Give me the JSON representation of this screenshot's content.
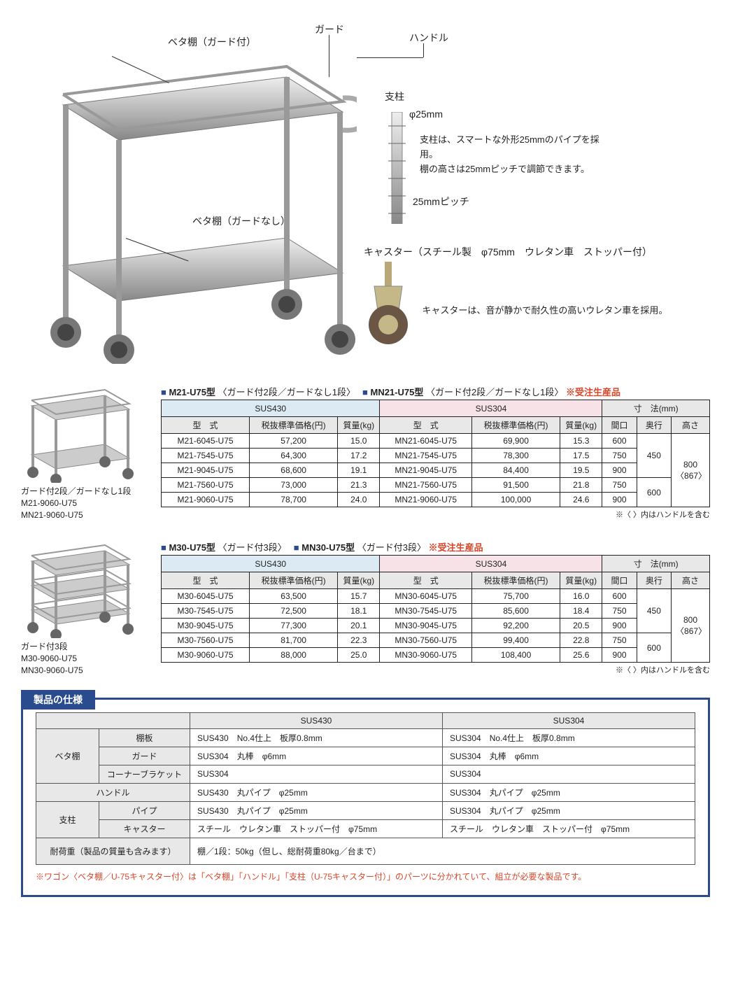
{
  "diagram": {
    "labels": {
      "guard": "ガード",
      "handle": "ハンドル",
      "shelf_guard": "ベタ棚（ガード付）",
      "post": "支柱",
      "shelf_noguard": "ベタ棚（ガードなし）",
      "diameter": "φ25mm",
      "pitch": "25mmピッチ",
      "post_text": "支柱は、スマートな外形25mmのパイプを採用。\n棚の高さは25mmピッチで調節できます。",
      "caster_title": "キャスター（スチール製　φ75mm　ウレタン車　ストッパー付）",
      "caster_text": "キャスターは、音が静かで耐久性の高いウレタン車を採用。"
    }
  },
  "colors": {
    "blue_bg": "#dbeaf3",
    "pink_bg": "#f6e2e7",
    "gray_bg": "#e8e8e8",
    "navy": "#2b4b8f",
    "red": "#d9462a"
  },
  "tables": [
    {
      "thumb_cap1": "ガード付2段／ガードなし1段",
      "thumb_cap2": "M21-9060-U75",
      "thumb_cap3": "MN21-9060-U75",
      "title_a": "M21-U75型",
      "title_a_sub": "〈ガード付2段／ガードなし1段〉",
      "title_b": "MN21-U75型",
      "title_b_sub": "〈ガード付2段／ガードなし1段〉",
      "made_to_order": "※受注生産品",
      "mat_a": "SUS430",
      "mat_b": "SUS304",
      "dim_header": "寸　法(mm)",
      "col_model": "型　式",
      "col_price": "税抜標準価格(円)",
      "col_weight": "質量(kg)",
      "col_w": "間口",
      "col_d": "奥行",
      "col_h": "高さ",
      "depth_group1": "450",
      "depth_group2": "600",
      "height": "800\n〈867〉",
      "rows": [
        {
          "ma": "M21-6045-U75",
          "pa": "57,200",
          "wa": "15.0",
          "mb": "MN21-6045-U75",
          "pb": "69,900",
          "wb": "15.3",
          "ww": "600"
        },
        {
          "ma": "M21-7545-U75",
          "pa": "64,300",
          "wa": "17.2",
          "mb": "MN21-7545-U75",
          "pb": "78,300",
          "wb": "17.5",
          "ww": "750"
        },
        {
          "ma": "M21-9045-U75",
          "pa": "68,600",
          "wa": "19.1",
          "mb": "MN21-9045-U75",
          "pb": "84,400",
          "wb": "19.5",
          "ww": "900"
        },
        {
          "ma": "M21-7560-U75",
          "pa": "73,000",
          "wa": "21.3",
          "mb": "MN21-7560-U75",
          "pb": "91,500",
          "wb": "21.8",
          "ww": "750"
        },
        {
          "ma": "M21-9060-U75",
          "pa": "78,700",
          "wa": "24.0",
          "mb": "MN21-9060-U75",
          "pb": "100,000",
          "wb": "24.6",
          "ww": "900"
        }
      ],
      "footnote": "※〈 〉内はハンドルを含む"
    },
    {
      "thumb_cap1": "ガード付3段",
      "thumb_cap2": "M30-9060-U75",
      "thumb_cap3": "MN30-9060-U75",
      "title_a": "M30-U75型",
      "title_a_sub": "〈ガード付3段〉",
      "title_b": "MN30-U75型",
      "title_b_sub": "〈ガード付3段〉",
      "made_to_order": "※受注生産品",
      "mat_a": "SUS430",
      "mat_b": "SUS304",
      "dim_header": "寸　法(mm)",
      "col_model": "型　式",
      "col_price": "税抜標準価格(円)",
      "col_weight": "質量(kg)",
      "col_w": "間口",
      "col_d": "奥行",
      "col_h": "高さ",
      "depth_group1": "450",
      "depth_group2": "600",
      "height": "800\n〈867〉",
      "rows": [
        {
          "ma": "M30-6045-U75",
          "pa": "63,500",
          "wa": "15.7",
          "mb": "MN30-6045-U75",
          "pb": "75,700",
          "wb": "16.0",
          "ww": "600"
        },
        {
          "ma": "M30-7545-U75",
          "pa": "72,500",
          "wa": "18.1",
          "mb": "MN30-7545-U75",
          "pb": "85,600",
          "wb": "18.4",
          "ww": "750"
        },
        {
          "ma": "M30-9045-U75",
          "pa": "77,300",
          "wa": "20.1",
          "mb": "MN30-9045-U75",
          "pb": "92,200",
          "wb": "20.5",
          "ww": "900"
        },
        {
          "ma": "M30-7560-U75",
          "pa": "81,700",
          "wa": "22.3",
          "mb": "MN30-7560-U75",
          "pb": "99,400",
          "wb": "22.8",
          "ww": "750"
        },
        {
          "ma": "M30-9060-U75",
          "pa": "88,000",
          "wa": "25.0",
          "mb": "MN30-9060-U75",
          "pb": "108,400",
          "wb": "25.6",
          "ww": "900"
        }
      ],
      "footnote": "※〈 〉内はハンドルを含む"
    }
  ],
  "spec_box": {
    "tab": "製品の仕様",
    "col_a": "SUS430",
    "col_b": "SUS304",
    "rows": [
      {
        "g": "ベタ棚",
        "k": "棚板",
        "a": "SUS430　No.4仕上　板厚0.8mm",
        "b": "SUS304　No.4仕上　板厚0.8mm"
      },
      {
        "g": "",
        "k": "ガード",
        "a": "SUS304　丸棒　φ6mm",
        "b": "SUS304　丸棒　φ6mm"
      },
      {
        "g": "",
        "k": "コーナーブラケット",
        "a": "SUS304",
        "b": "SUS304"
      },
      {
        "g": "ハンドル",
        "k": "",
        "a": "SUS430　丸パイプ　φ25mm",
        "b": "SUS304　丸パイプ　φ25mm"
      },
      {
        "g": "支柱",
        "k": "パイプ",
        "a": "SUS430　丸パイプ　φ25mm",
        "b": "SUS304　丸パイプ　φ25mm"
      },
      {
        "g": "",
        "k": "キャスター",
        "a": "スチール　ウレタン車　ストッパー付　φ75mm",
        "b": "スチール　ウレタン車　ストッパー付　φ75mm"
      },
      {
        "g": "耐荷重（製品の質量も含みます）",
        "k": "",
        "a": "棚／1段：50kg（但し、総耐荷重80kg／台まで）",
        "b": ""
      }
    ],
    "footnote": "※ワゴン〈ベタ棚／U-75キャスター付〉は「ベタ棚」「ハンドル」「支柱（U-75キャスター付）」のパーツに分かれていて、組立が必要な製品です。"
  }
}
